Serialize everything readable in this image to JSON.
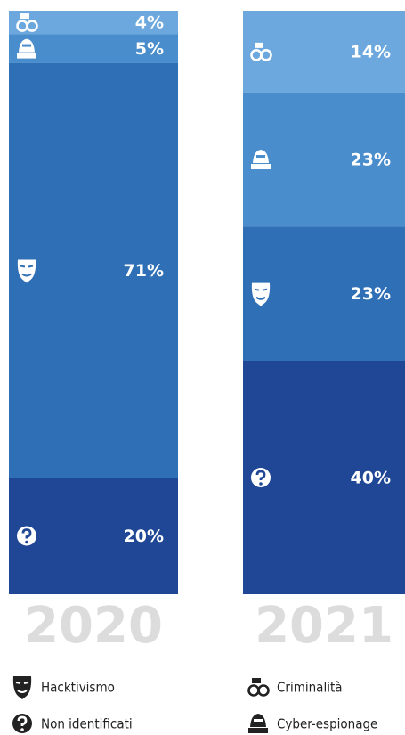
{
  "chart_data": {
    "type": "stacked-bar",
    "categories": [
      "2020",
      "2021"
    ],
    "series": [
      {
        "name": "Criminalità",
        "color": "#6ca8dd",
        "values": [
          4,
          14
        ],
        "value_labels": [
          "4%",
          "14%"
        ]
      },
      {
        "name": "Cyber-espionage",
        "color": "#4a8dcc",
        "values": [
          5,
          23
        ],
        "value_labels": [
          "5%",
          "23%"
        ]
      },
      {
        "name": "Hacktivismo",
        "color": "#2f6fb6",
        "values": [
          71,
          23
        ],
        "value_labels": [
          "71%",
          "23%"
        ]
      },
      {
        "name": "Non identificati",
        "color": "#1f4795",
        "values": [
          20,
          40
        ],
        "value_labels": [
          "20%",
          "40%"
        ]
      }
    ],
    "ylim": [
      0,
      100
    ]
  }
}
